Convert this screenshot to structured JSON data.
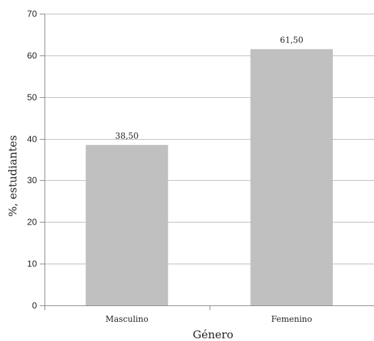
{
  "chart_data": {
    "type": "bar",
    "title": "",
    "xlabel": "Género",
    "ylabel": "%, estudiantes",
    "categories": [
      "Masculino",
      "Femenino"
    ],
    "values": [
      38.5,
      61.5
    ],
    "value_labels": [
      "38,50",
      "61,50"
    ],
    "ylim": [
      0,
      70
    ],
    "yticks": [
      0,
      10,
      20,
      30,
      40,
      50,
      60,
      70
    ],
    "grid": true,
    "legend": "none",
    "bar_color": "#c0c0c0",
    "grid_color": "#bdbdbd"
  }
}
